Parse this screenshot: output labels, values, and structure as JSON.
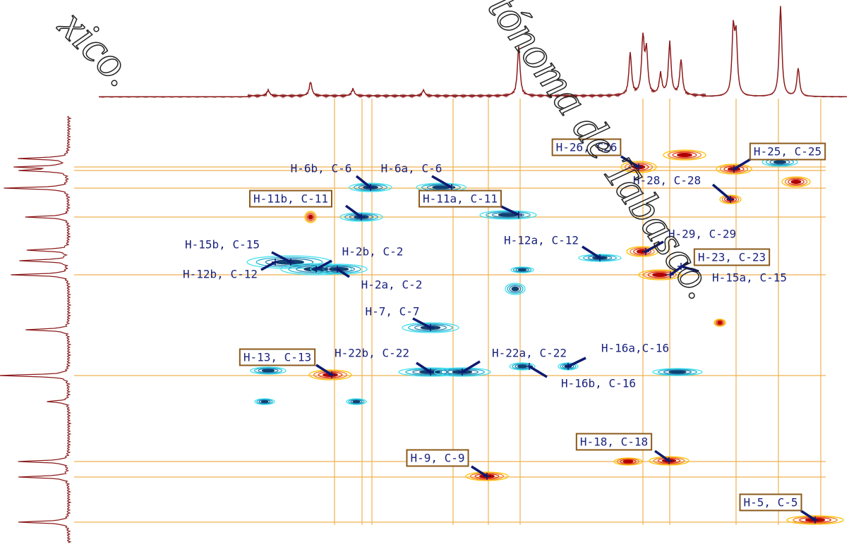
{
  "annotations": [
    "H-26, C26",
    "H-25, C-25",
    "H-28, C-28",
    "H-6b, C-6",
    "H-6a, C-6",
    "H-11b, C-11",
    "H-11a, C-11",
    "H-29, C-29",
    "H-12a, C-12",
    "H-15b, C-15",
    "H-2b, C-2",
    "H-23, C-23",
    "H-12b, C-12",
    "H-15a, C-15",
    "H-2a, C-2",
    "H-7, C-7",
    "H-13, C-13",
    "H-22b, C-22",
    "H-22a, C-22",
    "H-16a,C-16",
    "H-16b, C-16",
    "H-18, C-18",
    "H-9, C-9",
    "H-5, C-5"
  ],
  "watermark": [
    "xico.",
    "tónoma de Tabasco."
  ]
}
